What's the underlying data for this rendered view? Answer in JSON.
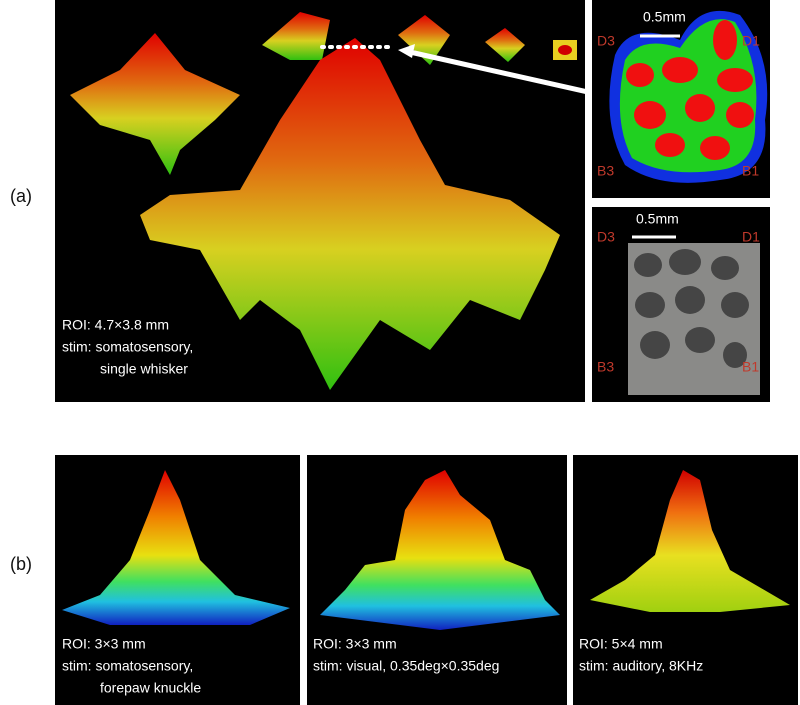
{
  "labels": {
    "a": "(a)",
    "b": "(b)"
  },
  "panel_a": {
    "main": {
      "lines": [
        "ROI: 4.7×3.8 mm",
        "stim: somatosensory,",
        "single whisker"
      ]
    },
    "map": {
      "scale": "0.5mm",
      "corners": [
        "D3",
        "D1",
        "B3",
        "B1"
      ]
    },
    "histology": {
      "scale": "0.5mm",
      "corners": [
        "D3",
        "D1",
        "B3",
        "B1"
      ]
    }
  },
  "panel_b": [
    {
      "lines": [
        "ROI: 3×3 mm",
        "stim: somatosensory,",
        "forepaw knuckle"
      ]
    },
    {
      "lines": [
        "ROI: 3×3 mm",
        "stim: visual, 0.35deg×0.35deg"
      ]
    },
    {
      "lines": [
        "ROI: 5×4 mm",
        "stim: auditory, 8KHz"
      ]
    }
  ]
}
